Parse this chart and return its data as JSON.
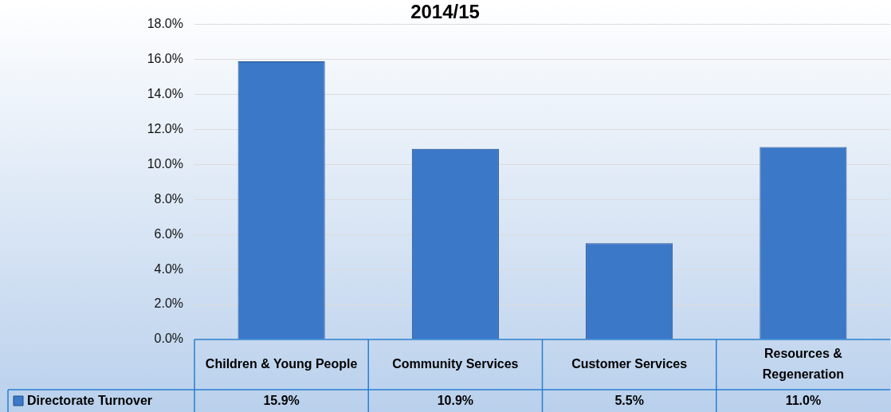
{
  "chart_data": {
    "type": "bar",
    "title": "2014/15",
    "categories": [
      "Children & Young People",
      "Community Services",
      "Customer Services",
      "Resources & Regeneration"
    ],
    "series": [
      {
        "name": "Directorate Turnover",
        "color": "#3b78c8",
        "values": [
          15.9,
          10.9,
          5.5,
          11.0
        ],
        "value_labels": [
          "15.9%",
          "10.9%",
          "5.5%",
          "11.0%"
        ]
      }
    ],
    "ylim": [
      0,
      18
    ],
    "yticks": [
      {
        "value": 0,
        "label": "0.0%"
      },
      {
        "value": 2,
        "label": "2.0%"
      },
      {
        "value": 4,
        "label": "4.0%"
      },
      {
        "value": 6,
        "label": "6.0%"
      },
      {
        "value": 8,
        "label": "8.0%"
      },
      {
        "value": 10,
        "label": "10.0%"
      },
      {
        "value": 12,
        "label": "12.0%"
      },
      {
        "value": 14,
        "label": "14.0%"
      },
      {
        "value": 16,
        "label": "16.0%"
      },
      {
        "value": 18,
        "label": "18.0%"
      }
    ],
    "grid": "y",
    "legend": "bottom left"
  }
}
